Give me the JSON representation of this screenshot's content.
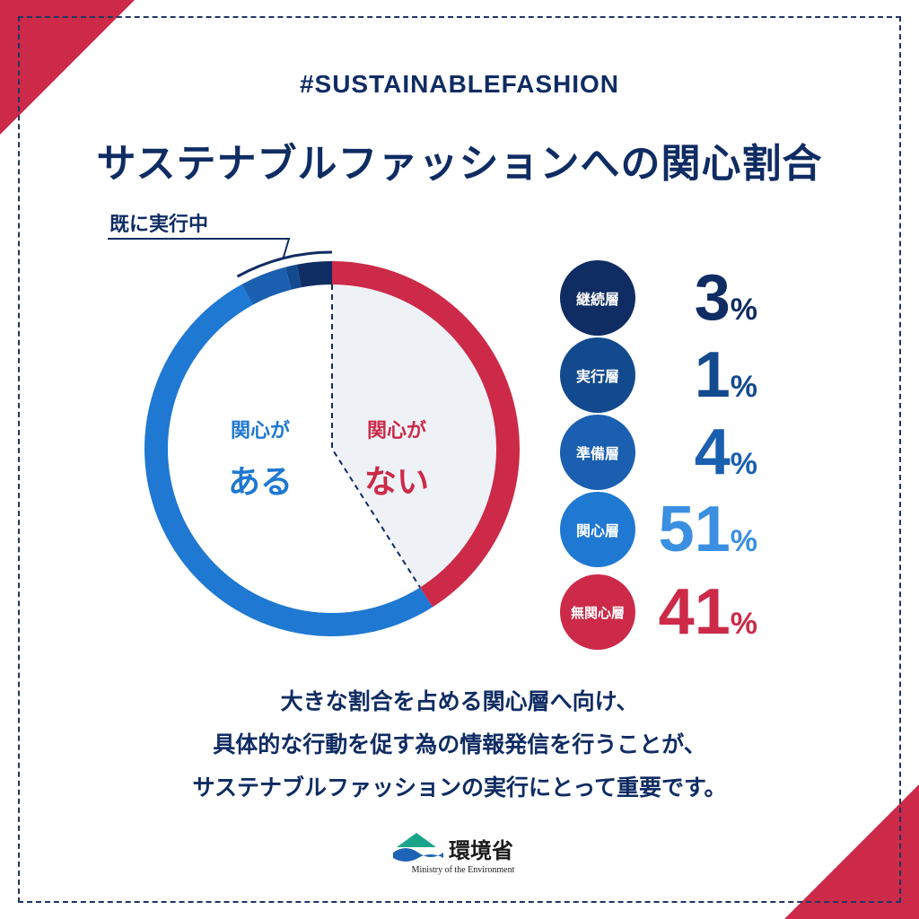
{
  "header": {
    "hashtag": "#SUSTAINABLEFASHION",
    "title": "サステナブルファッションへの関心割合"
  },
  "callout": {
    "label": "既に実行中"
  },
  "donut_labels": {
    "interested_line1": "関心が",
    "interested_line2": "ある",
    "not_interested_line1": "関心が",
    "not_interested_line2": "ない"
  },
  "chart_data": {
    "type": "pie",
    "title": "サステナブルファッションへの関心割合",
    "unit": "%",
    "slices": [
      {
        "name": "継続層",
        "value": 3,
        "color": "#0f2c63"
      },
      {
        "name": "実行層",
        "value": 1,
        "color": "#134a8e"
      },
      {
        "name": "準備層",
        "value": 4,
        "color": "#1a5fb0"
      },
      {
        "name": "関心層",
        "value": 51,
        "color": "#1f78d1"
      },
      {
        "name": "無関心層",
        "value": 41,
        "color": "#cc2a48"
      }
    ]
  },
  "legend": [
    {
      "label": "継続層",
      "value": "3",
      "unit": "%",
      "circle_color": "#0f2c63",
      "text_color": "#0f2c63"
    },
    {
      "label": "実行層",
      "value": "1",
      "unit": "%",
      "circle_color": "#134a8e",
      "text_color": "#134a8e"
    },
    {
      "label": "準備層",
      "value": "4",
      "unit": "%",
      "circle_color": "#1a5fb0",
      "text_color": "#1a5fb0"
    },
    {
      "label": "関心層",
      "value": "51",
      "unit": "%",
      "circle_color": "#1f78d1",
      "text_color": "#3a8fe0"
    },
    {
      "label": "無関心層",
      "value": "41",
      "unit": "%",
      "circle_color": "#cc2a48",
      "text_color": "#cc2a48"
    }
  ],
  "message": {
    "line1": "大きな割合を占める関心層へ向け、",
    "line2": "具体的な行動を促す為の情報発信を行うことが、",
    "line3": "サステナブルファッションの実行にとって重要です。"
  },
  "logo": {
    "name": "環境省",
    "sub": "Ministry of the Environment",
    "icon": "mountain-wave-icon"
  },
  "colors": {
    "navy": "#0f2c63",
    "red": "#cc2a48",
    "blue": "#1f78d1",
    "inner_fill": "#eef2f7"
  }
}
